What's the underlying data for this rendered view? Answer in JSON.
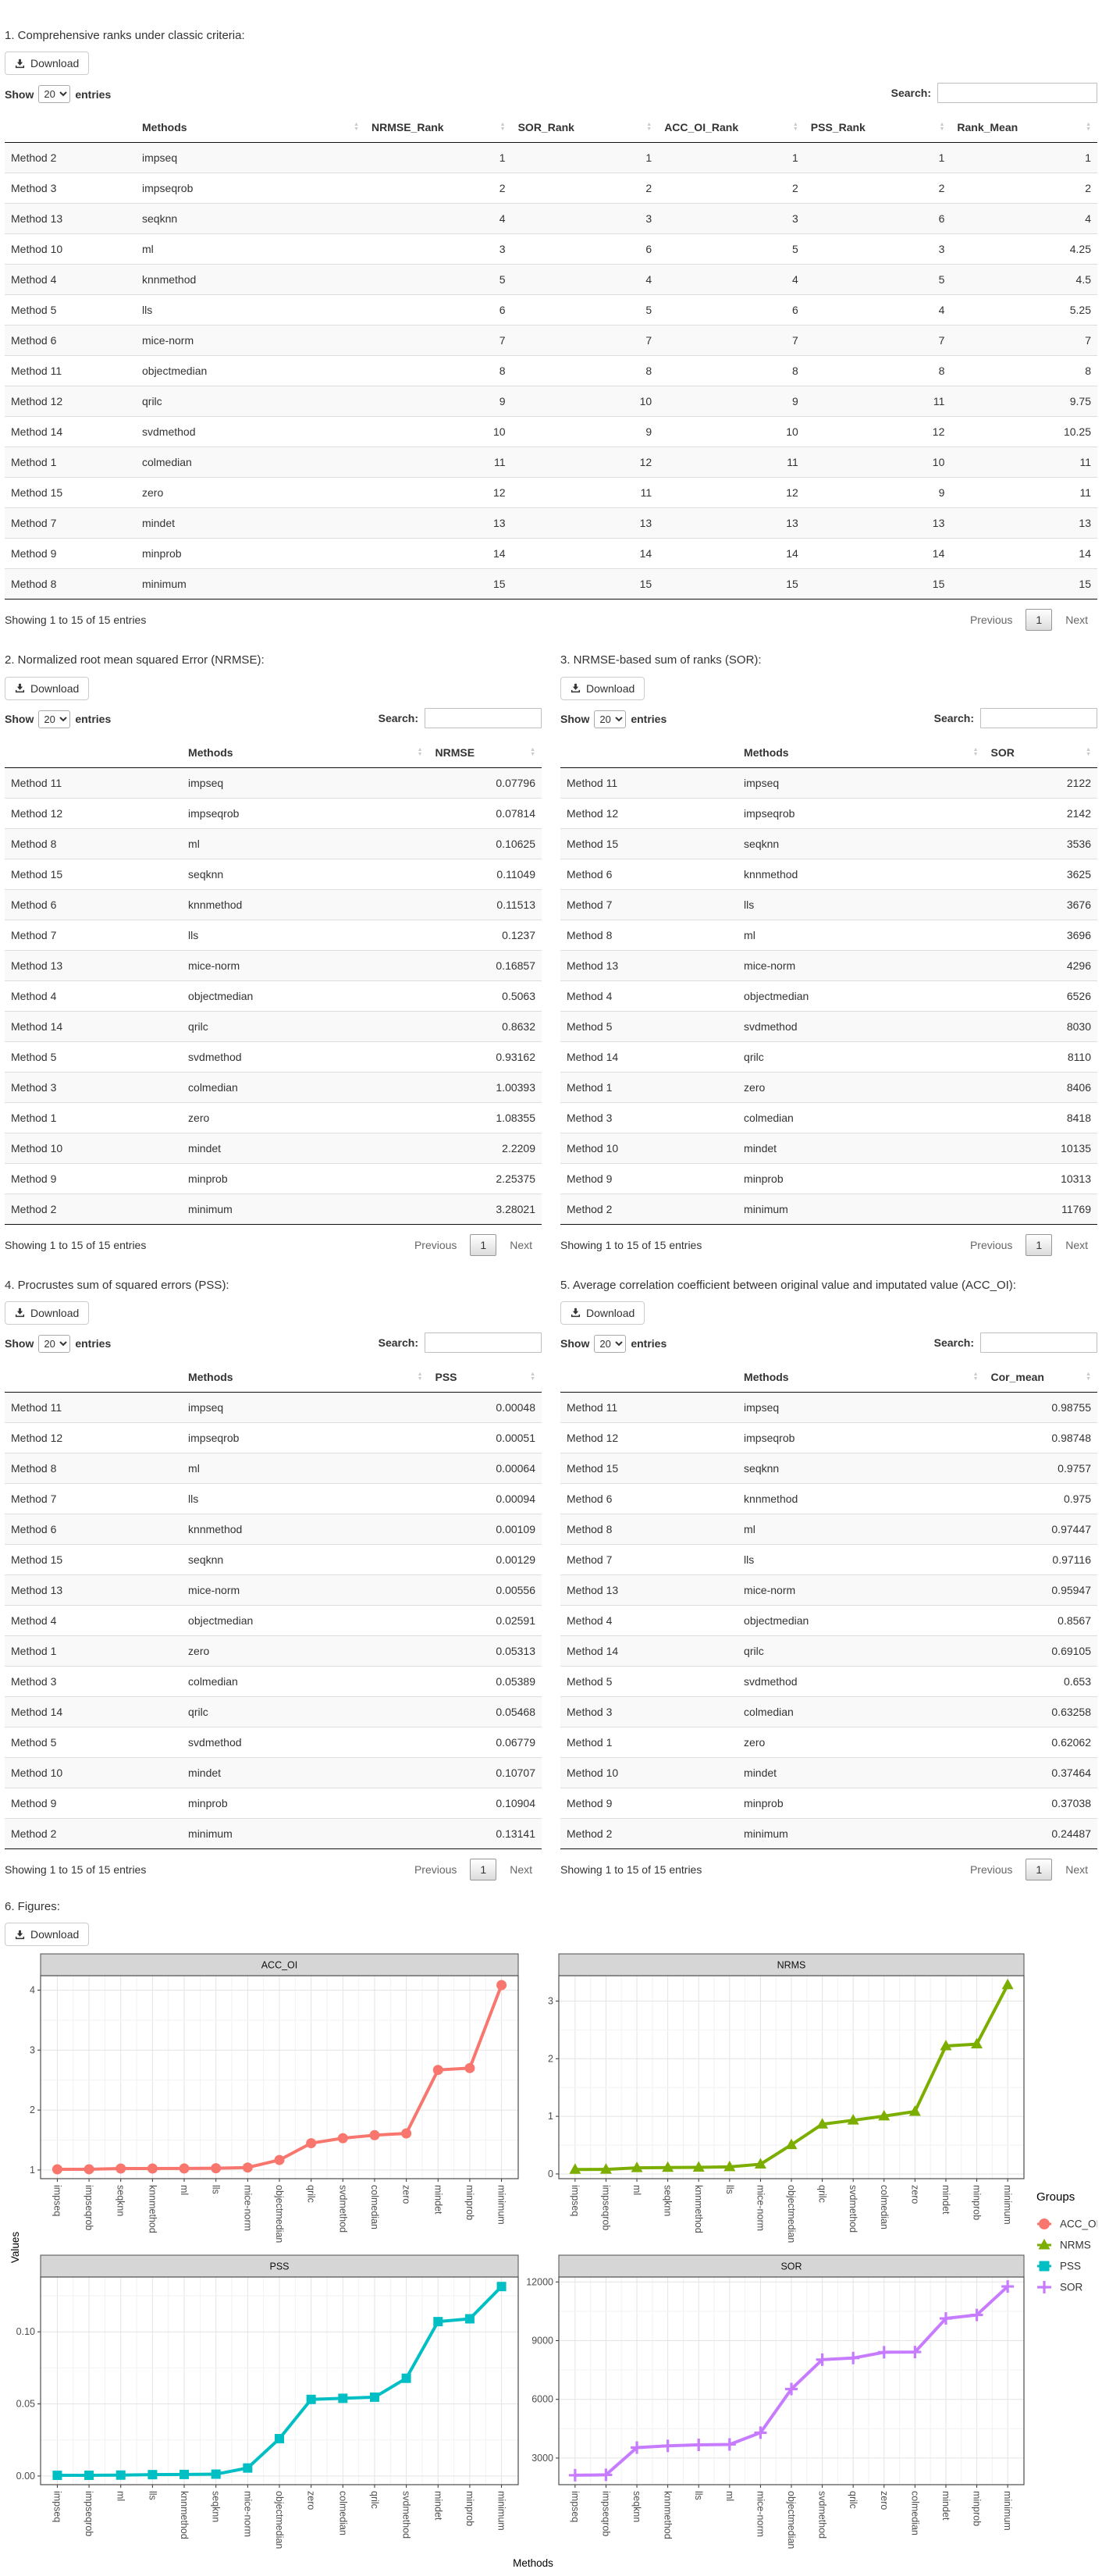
{
  "ui": {
    "download_label": "Download",
    "show_prefix": "Show",
    "show_value": "20",
    "entries_suffix": "entries",
    "search_label": "Search:",
    "info_text": "Showing 1 to 15 of 15 entries",
    "prev_label": "Previous",
    "page_label": "1",
    "next_label": "Next"
  },
  "tables": [
    {
      "title": "1. Comprehensive ranks under classic criteria:",
      "columns": [
        "",
        "Methods",
        "NRMSE_Rank",
        "SOR_Rank",
        "ACC_OI_Rank",
        "PSS_Rank",
        "Rank_Mean"
      ],
      "rows": [
        [
          "Method 2",
          "impseq",
          "1",
          "1",
          "1",
          "1",
          "1"
        ],
        [
          "Method 3",
          "impseqrob",
          "2",
          "2",
          "2",
          "2",
          "2"
        ],
        [
          "Method 13",
          "seqknn",
          "4",
          "3",
          "3",
          "6",
          "4"
        ],
        [
          "Method 10",
          "ml",
          "3",
          "6",
          "5",
          "3",
          "4.25"
        ],
        [
          "Method 4",
          "knnmethod",
          "5",
          "4",
          "4",
          "5",
          "4.5"
        ],
        [
          "Method 5",
          "lls",
          "6",
          "5",
          "6",
          "4",
          "5.25"
        ],
        [
          "Method 6",
          "mice-norm",
          "7",
          "7",
          "7",
          "7",
          "7"
        ],
        [
          "Method 11",
          "objectmedian",
          "8",
          "8",
          "8",
          "8",
          "8"
        ],
        [
          "Method 12",
          "qrilc",
          "9",
          "10",
          "9",
          "11",
          "9.75"
        ],
        [
          "Method 14",
          "svdmethod",
          "10",
          "9",
          "10",
          "12",
          "10.25"
        ],
        [
          "Method 1",
          "colmedian",
          "11",
          "12",
          "11",
          "10",
          "11"
        ],
        [
          "Method 15",
          "zero",
          "12",
          "11",
          "12",
          "9",
          "11"
        ],
        [
          "Method 7",
          "mindet",
          "13",
          "13",
          "13",
          "13",
          "13"
        ],
        [
          "Method 9",
          "minprob",
          "14",
          "14",
          "14",
          "14",
          "14"
        ],
        [
          "Method 8",
          "minimum",
          "15",
          "15",
          "15",
          "15",
          "15"
        ]
      ]
    },
    {
      "title": "2. Normalized root mean squared Error (NRMSE):",
      "columns": [
        "",
        "Methods",
        "NRMSE"
      ],
      "rows": [
        [
          "Method 11",
          "impseq",
          "0.07796"
        ],
        [
          "Method 12",
          "impseqrob",
          "0.07814"
        ],
        [
          "Method 8",
          "ml",
          "0.10625"
        ],
        [
          "Method 15",
          "seqknn",
          "0.11049"
        ],
        [
          "Method 6",
          "knnmethod",
          "0.11513"
        ],
        [
          "Method 7",
          "lls",
          "0.1237"
        ],
        [
          "Method 13",
          "mice-norm",
          "0.16857"
        ],
        [
          "Method 4",
          "objectmedian",
          "0.5063"
        ],
        [
          "Method 14",
          "qrilc",
          "0.8632"
        ],
        [
          "Method 5",
          "svdmethod",
          "0.93162"
        ],
        [
          "Method 3",
          "colmedian",
          "1.00393"
        ],
        [
          "Method 1",
          "zero",
          "1.08355"
        ],
        [
          "Method 10",
          "mindet",
          "2.2209"
        ],
        [
          "Method 9",
          "minprob",
          "2.25375"
        ],
        [
          "Method 2",
          "minimum",
          "3.28021"
        ]
      ]
    },
    {
      "title": "3. NRMSE-based sum of ranks (SOR):",
      "columns": [
        "",
        "Methods",
        "SOR"
      ],
      "rows": [
        [
          "Method 11",
          "impseq",
          "2122"
        ],
        [
          "Method 12",
          "impseqrob",
          "2142"
        ],
        [
          "Method 15",
          "seqknn",
          "3536"
        ],
        [
          "Method 6",
          "knnmethod",
          "3625"
        ],
        [
          "Method 7",
          "lls",
          "3676"
        ],
        [
          "Method 8",
          "ml",
          "3696"
        ],
        [
          "Method 13",
          "mice-norm",
          "4296"
        ],
        [
          "Method 4",
          "objectmedian",
          "6526"
        ],
        [
          "Method 5",
          "svdmethod",
          "8030"
        ],
        [
          "Method 14",
          "qrilc",
          "8110"
        ],
        [
          "Method 1",
          "zero",
          "8406"
        ],
        [
          "Method 3",
          "colmedian",
          "8418"
        ],
        [
          "Method 10",
          "mindet",
          "10135"
        ],
        [
          "Method 9",
          "minprob",
          "10313"
        ],
        [
          "Method 2",
          "minimum",
          "11769"
        ]
      ]
    },
    {
      "title": "4. Procrustes sum of squared errors (PSS):",
      "columns": [
        "",
        "Methods",
        "PSS"
      ],
      "rows": [
        [
          "Method 11",
          "impseq",
          "0.00048"
        ],
        [
          "Method 12",
          "impseqrob",
          "0.00051"
        ],
        [
          "Method 8",
          "ml",
          "0.00064"
        ],
        [
          "Method 7",
          "lls",
          "0.00094"
        ],
        [
          "Method 6",
          "knnmethod",
          "0.00109"
        ],
        [
          "Method 15",
          "seqknn",
          "0.00129"
        ],
        [
          "Method 13",
          "mice-norm",
          "0.00556"
        ],
        [
          "Method 4",
          "objectmedian",
          "0.02591"
        ],
        [
          "Method 1",
          "zero",
          "0.05313"
        ],
        [
          "Method 3",
          "colmedian",
          "0.05389"
        ],
        [
          "Method 14",
          "qrilc",
          "0.05468"
        ],
        [
          "Method 5",
          "svdmethod",
          "0.06779"
        ],
        [
          "Method 10",
          "mindet",
          "0.10707"
        ],
        [
          "Method 9",
          "minprob",
          "0.10904"
        ],
        [
          "Method 2",
          "minimum",
          "0.13141"
        ]
      ]
    },
    {
      "title": "5. Average correlation coefficient between original value and imputated value (ACC_OI):",
      "columns": [
        "",
        "Methods",
        "Cor_mean"
      ],
      "rows": [
        [
          "Method 11",
          "impseq",
          "0.98755"
        ],
        [
          "Method 12",
          "impseqrob",
          "0.98748"
        ],
        [
          "Method 15",
          "seqknn",
          "0.9757"
        ],
        [
          "Method 6",
          "knnmethod",
          "0.975"
        ],
        [
          "Method 8",
          "ml",
          "0.97447"
        ],
        [
          "Method 7",
          "lls",
          "0.97116"
        ],
        [
          "Method 13",
          "mice-norm",
          "0.95947"
        ],
        [
          "Method 4",
          "objectmedian",
          "0.8567"
        ],
        [
          "Method 14",
          "qrilc",
          "0.69105"
        ],
        [
          "Method 5",
          "svdmethod",
          "0.653"
        ],
        [
          "Method 3",
          "colmedian",
          "0.63258"
        ],
        [
          "Method 1",
          "zero",
          "0.62062"
        ],
        [
          "Method 10",
          "mindet",
          "0.37464"
        ],
        [
          "Method 9",
          "minprob",
          "0.37038"
        ],
        [
          "Method 2",
          "minimum",
          "0.24487"
        ]
      ]
    }
  ],
  "figures_section": {
    "title": "6. Figures:"
  },
  "figure": {
    "ylabel": "Values",
    "xlabel": "Methods",
    "legend_title": "Groups",
    "legend": [
      {
        "label": "ACC_OI",
        "color": "#F8766D",
        "marker": "circle"
      },
      {
        "label": "NRMS",
        "color": "#7CAE00",
        "marker": "triangle"
      },
      {
        "label": "PSS",
        "color": "#00BFC4",
        "marker": "square"
      },
      {
        "label": "SOR",
        "color": "#C77CFF",
        "marker": "plus"
      }
    ]
  },
  "chart_data": [
    {
      "type": "line",
      "title": "ACC_OI",
      "color": "#F8766D",
      "marker": "circle",
      "yticks": [
        1,
        2,
        3,
        4
      ],
      "ytick_labels": [
        "1",
        "2",
        "3",
        "4"
      ],
      "ylim": [
        0.856,
        4.24
      ],
      "categories": [
        "impseq",
        "impseqrob",
        "seqknn",
        "knnmethod",
        "ml",
        "lls",
        "mice-norm",
        "objectmedian",
        "qrilc",
        "svdmethod",
        "colmedian",
        "zero",
        "mindet",
        "minprob",
        "minimum"
      ],
      "values": [
        1.0126,
        1.0127,
        1.0249,
        1.0256,
        1.0262,
        1.0297,
        1.0422,
        1.1673,
        1.4471,
        1.5314,
        1.5808,
        1.6113,
        2.6692,
        2.6999,
        4.0838
      ]
    },
    {
      "type": "line",
      "title": "NRMS",
      "color": "#7CAE00",
      "marker": "triangle",
      "yticks": [
        0,
        1,
        2,
        3
      ],
      "ytick_labels": [
        "0",
        "1",
        "2",
        "3"
      ],
      "ylim": [
        -0.082,
        3.44
      ],
      "categories": [
        "impseq",
        "impseqrob",
        "ml",
        "seqknn",
        "knnmethod",
        "lls",
        "mice-norm",
        "objectmedian",
        "qrilc",
        "svdmethod",
        "colmedian",
        "zero",
        "mindet",
        "minprob",
        "minimum"
      ],
      "values": [
        0.07796,
        0.07814,
        0.10625,
        0.11049,
        0.11513,
        0.1237,
        0.16857,
        0.5063,
        0.8632,
        0.93162,
        1.00393,
        1.08355,
        2.2209,
        2.25375,
        3.28021
      ]
    },
    {
      "type": "line",
      "title": "PSS",
      "color": "#00BFC4",
      "marker": "square",
      "yticks": [
        0,
        0.05,
        0.1
      ],
      "ytick_labels": [
        "0.00",
        "0.05",
        "0.10"
      ],
      "ylim": [
        -0.006,
        0.138
      ],
      "categories": [
        "impseq",
        "impseqrob",
        "ml",
        "lls",
        "knnmethod",
        "seqknn",
        "mice-norm",
        "objectmedian",
        "zero",
        "colmedian",
        "qrilc",
        "svdmethod",
        "mindet",
        "minprob",
        "minimum"
      ],
      "values": [
        0.00048,
        0.00051,
        0.00064,
        0.00094,
        0.00109,
        0.00129,
        0.00556,
        0.02591,
        0.05313,
        0.05389,
        0.05468,
        0.06779,
        0.10707,
        0.10904,
        0.13141
      ]
    },
    {
      "type": "line",
      "title": "SOR",
      "color": "#C77CFF",
      "marker": "plus",
      "yticks": [
        3000,
        6000,
        9000,
        12000
      ],
      "ytick_labels": [
        "3000",
        "6000",
        "9000",
        "12000"
      ],
      "ylim": [
        1640,
        12251
      ],
      "categories": [
        "impseq",
        "impseqrob",
        "seqknn",
        "knnmethod",
        "lls",
        "ml",
        "mice-norm",
        "objectmedian",
        "svdmethod",
        "qrilc",
        "zero",
        "colmedian",
        "mindet",
        "minprob",
        "minimum"
      ],
      "values": [
        2122,
        2142,
        3536,
        3625,
        3676,
        3696,
        4296,
        6526,
        8030,
        8110,
        8406,
        8418,
        10135,
        10313,
        11769
      ]
    }
  ]
}
